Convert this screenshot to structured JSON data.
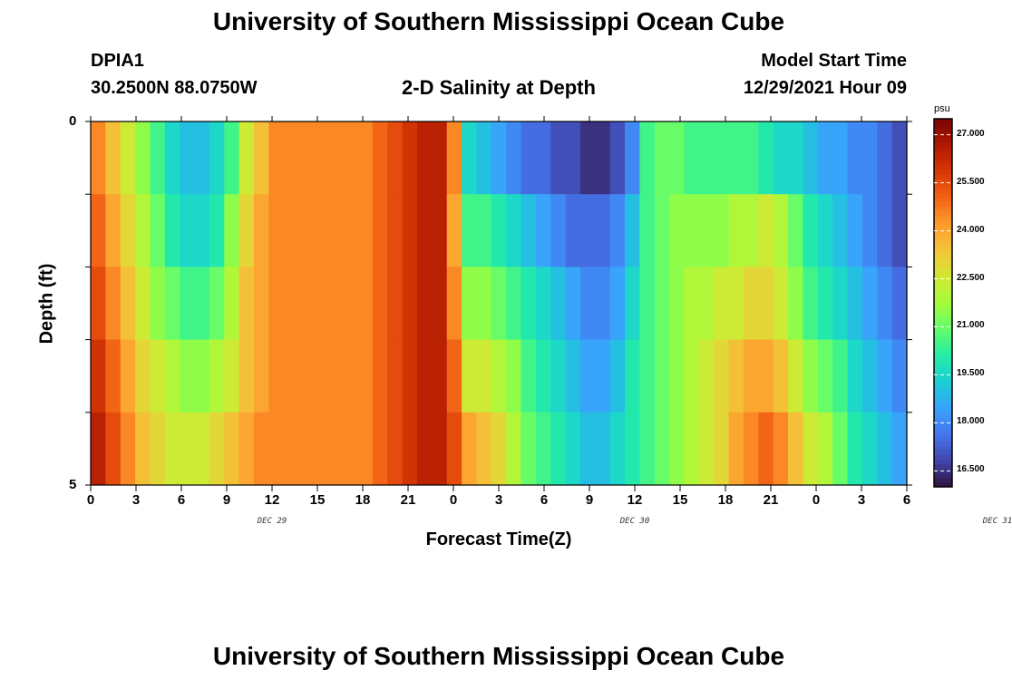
{
  "page": {
    "title_top": "University of Southern Mississippi Ocean Cube",
    "title_bottom": "University of Southern Mississippi Ocean Cube",
    "station": "DPIA1",
    "coords": "30.2500N  88.0750W",
    "plot_title": "2-D Salinity at Depth",
    "start_label": "Model Start Time",
    "start_value": "12/29/2021 Hour 09"
  },
  "chart_data": {
    "type": "heatmap",
    "title": "2-D Salinity at Depth",
    "xlabel": "Forecast Time(Z)",
    "ylabel": "Depth (ft)",
    "x_ticks": [
      "0",
      "3",
      "6",
      "9",
      "12",
      "15",
      "18",
      "21",
      "0",
      "3",
      "6",
      "9",
      "12",
      "15",
      "18",
      "21",
      "0",
      "3",
      "6"
    ],
    "x_day_labels": [
      {
        "label": "DEC 29",
        "hour": 12
      },
      {
        "label": "DEC 30",
        "hour": 36
      },
      {
        "label": "DEC 31",
        "hour": 60
      }
    ],
    "y_ticks": [
      "0",
      "5"
    ],
    "ylim": [
      0,
      5
    ],
    "x_hours": [
      0,
      54
    ],
    "colorbar": {
      "unit": "psu",
      "min": 16,
      "max": 27.5,
      "ticks": [
        "27.000",
        "25.500",
        "24.000",
        "22.500",
        "21.000",
        "19.500",
        "18.000",
        "16.500"
      ],
      "colors": [
        "#30123b",
        "#4145ab",
        "#4675ed",
        "#39a2fc",
        "#1bcfd4",
        "#24eca6",
        "#61fc6c",
        "#a4fc3b",
        "#d1e834",
        "#f3c63a",
        "#fe9b2d",
        "#f36315",
        "#d93806",
        "#b11901",
        "#7a0402"
      ]
    },
    "layers": [
      {
        "depth_top": 0,
        "values": [
          24.5,
          23.5,
          22.5,
          21.5,
          20.5,
          19.5,
          19.0,
          19.0,
          19.5,
          20.5,
          22.5,
          23.5,
          24.5,
          24.5,
          24.5,
          24.5,
          24.5,
          24.5,
          24.5,
          25.0,
          25.5,
          26.0,
          26.5,
          26.5,
          24.5,
          19.5,
          19.0,
          18.5,
          18.0,
          17.5,
          17.5,
          17.0,
          17.0,
          16.5,
          16.5,
          17.0,
          18.0,
          20.5,
          21.0,
          21.0,
          20.5,
          20.5,
          20.5,
          20.5,
          20.5,
          20.0,
          19.5,
          19.5,
          19.0,
          18.5,
          18.5,
          18.0,
          18.0,
          17.5,
          17.0
        ]
      },
      {
        "depth_top": 1,
        "values": [
          25.0,
          24.0,
          23.0,
          22.0,
          21.0,
          20.0,
          19.5,
          19.5,
          20.0,
          21.5,
          23.0,
          24.0,
          24.5,
          24.5,
          24.5,
          24.5,
          24.5,
          24.5,
          24.5,
          25.0,
          25.5,
          26.0,
          26.5,
          26.5,
          24.0,
          20.5,
          20.5,
          20.0,
          19.5,
          19.0,
          18.5,
          18.0,
          17.5,
          17.5,
          17.5,
          18.0,
          19.0,
          20.5,
          21.0,
          21.5,
          21.5,
          21.5,
          21.5,
          22.0,
          22.0,
          22.5,
          22.0,
          21.0,
          20.0,
          19.5,
          19.0,
          18.5,
          18.0,
          17.5,
          17.0
        ]
      },
      {
        "depth_top": 2,
        "values": [
          25.5,
          24.5,
          23.5,
          22.5,
          21.5,
          21.0,
          20.5,
          20.5,
          21.0,
          22.0,
          23.5,
          24.0,
          24.5,
          24.5,
          24.5,
          24.5,
          24.5,
          24.5,
          24.5,
          25.0,
          25.5,
          26.0,
          26.5,
          26.5,
          24.5,
          21.5,
          21.5,
          21.0,
          20.5,
          20.0,
          19.5,
          19.0,
          18.5,
          18.0,
          18.0,
          18.5,
          19.5,
          20.5,
          21.0,
          21.5,
          22.0,
          22.0,
          22.5,
          22.5,
          23.0,
          23.0,
          22.5,
          21.5,
          20.5,
          20.0,
          19.5,
          19.0,
          18.5,
          18.0,
          17.5
        ]
      },
      {
        "depth_top": 3,
        "values": [
          26.0,
          25.0,
          24.0,
          23.0,
          22.5,
          22.0,
          21.5,
          21.5,
          22.0,
          22.5,
          23.5,
          24.0,
          24.5,
          24.5,
          24.5,
          24.5,
          24.5,
          24.5,
          24.5,
          25.0,
          25.5,
          26.0,
          26.5,
          26.5,
          25.0,
          22.5,
          22.5,
          22.0,
          21.5,
          20.5,
          20.0,
          19.5,
          19.0,
          18.5,
          18.5,
          19.0,
          20.0,
          20.5,
          21.0,
          21.5,
          22.0,
          22.5,
          23.0,
          23.5,
          24.0,
          24.0,
          23.5,
          22.5,
          21.5,
          21.0,
          20.5,
          19.5,
          19.0,
          18.5,
          18.0
        ]
      },
      {
        "depth_top": 4,
        "values": [
          26.5,
          25.5,
          24.5,
          23.5,
          23.0,
          22.5,
          22.5,
          22.5,
          23.0,
          23.5,
          24.0,
          24.5,
          24.5,
          24.5,
          24.5,
          24.5,
          24.5,
          24.5,
          24.5,
          25.0,
          25.5,
          26.0,
          26.5,
          26.5,
          25.5,
          24.0,
          23.5,
          23.0,
          22.0,
          21.0,
          20.5,
          20.0,
          19.5,
          19.0,
          19.0,
          19.5,
          20.0,
          20.5,
          21.0,
          21.5,
          22.0,
          22.5,
          23.0,
          24.0,
          24.5,
          25.0,
          24.5,
          23.5,
          22.5,
          22.0,
          21.0,
          20.0,
          19.5,
          19.0,
          18.5
        ]
      }
    ]
  }
}
